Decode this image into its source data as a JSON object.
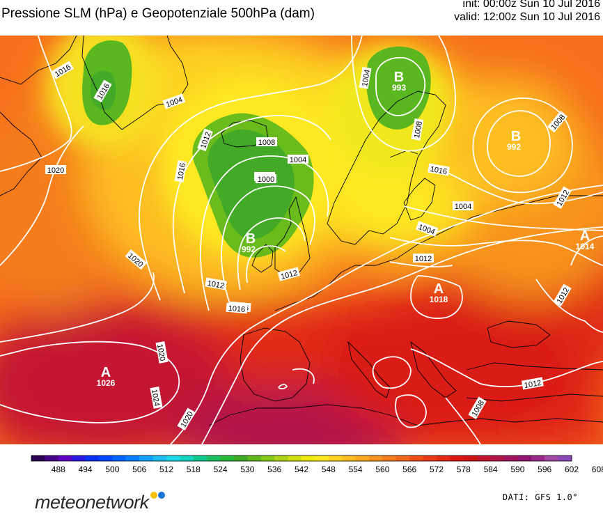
{
  "header": {
    "title": "Pressione SLM (hPa) e Geopotenziale 500hPa (dam)",
    "init": "init: 00:00z Sun 10 Jul 2016",
    "valid": "valid: 12:00z Sun 10 Jul 2016"
  },
  "map": {
    "region": "Europe / North Atlantic",
    "high_label": "A",
    "low_label": "B",
    "pressure_centers": [
      {
        "type": "high",
        "letter": "A",
        "value": "1026"
      },
      {
        "type": "low",
        "letter": "B",
        "value": "992"
      },
      {
        "type": "low",
        "letter": "B",
        "value": "993"
      },
      {
        "type": "low",
        "letter": "B",
        "value": "992"
      },
      {
        "type": "high",
        "letter": "A",
        "value": "1018"
      },
      {
        "type": "high",
        "letter": "A",
        "value": "1014"
      }
    ],
    "isobar_labels": [
      "1016",
      "1020",
      "1016",
      "1020",
      "1012",
      "1016",
      "1020",
      "1020",
      "1024",
      "1004",
      "1008",
      "1012",
      "1016",
      "1012",
      "1008",
      "1004",
      "1000",
      "1004",
      "1008",
      "1012",
      "1016",
      "1008",
      "1004",
      "1004",
      "1012",
      "1012",
      "1008",
      "1012",
      "1016"
    ]
  },
  "legend": {
    "unit": "dam",
    "ticks": [
      "488",
      "494",
      "500",
      "506",
      "512",
      "518",
      "524",
      "530",
      "536",
      "542",
      "548",
      "554",
      "560",
      "566",
      "572",
      "578",
      "584",
      "590",
      "596",
      "602",
      "608"
    ],
    "colors": [
      "#2a0050",
      "#46008a",
      "#6000c0",
      "#2c18e0",
      "#0a30f8",
      "#0048ff",
      "#0064ff",
      "#0a82ff",
      "#14a0ff",
      "#1ebef4",
      "#1ed8e8",
      "#14d6c0",
      "#10c890",
      "#1cc062",
      "#2ab636",
      "#3ea828",
      "#5eb81e",
      "#86c818",
      "#acd414",
      "#d0de10",
      "#eee80e",
      "#fde820",
      "#fdd222",
      "#fdbe22",
      "#fba820",
      "#f8921e",
      "#f57c1c",
      "#f2661a",
      "#ee5018",
      "#e83a16",
      "#e22a14",
      "#da1a12",
      "#ce1414",
      "#c01630",
      "#b21648",
      "#a0145e",
      "#8e1470",
      "#9a2a8a",
      "#a44aa4",
      "#8a48b4"
    ]
  },
  "footer": {
    "brand": "meteonetwork",
    "source": "DATI: GFS 1.0°"
  }
}
